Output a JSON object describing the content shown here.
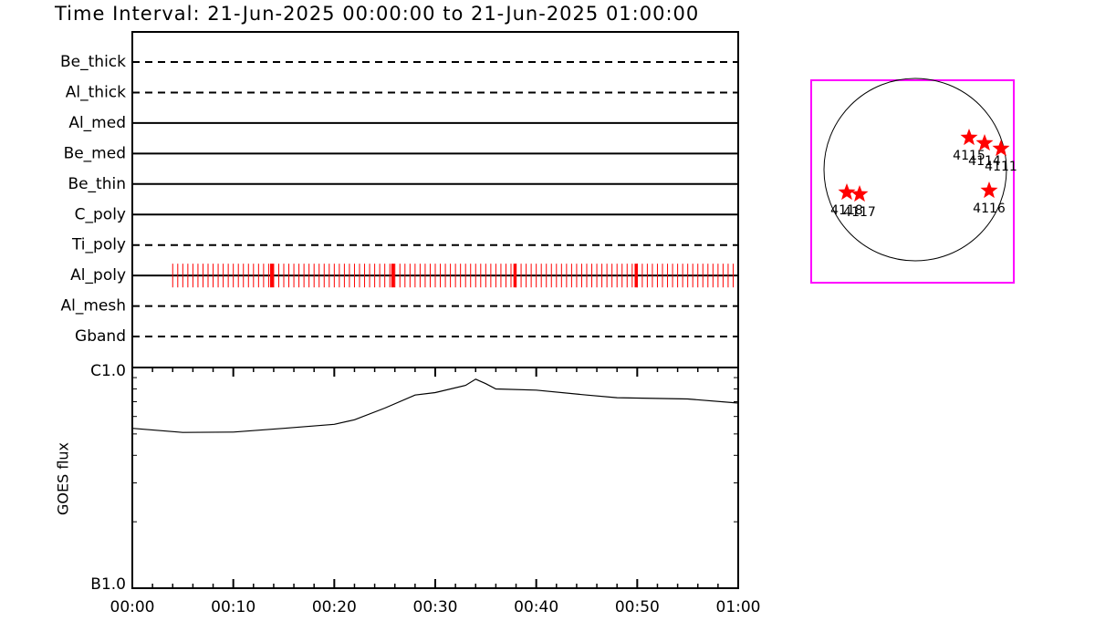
{
  "chart_data": [
    {
      "type": "timeline",
      "title": "Time Interval: 21-Jun-2025 00:00:00 to 21-Jun-2025 01:00:00",
      "categories": [
        "Be_thick",
        "Al_thick",
        "Al_med",
        "Be_med",
        "Be_thin",
        "C_poly",
        "Ti_poly",
        "Al_poly",
        "Al_mesh",
        "Gband"
      ],
      "line_styles": [
        "dashed",
        "dashed",
        "solid",
        "solid",
        "solid",
        "solid",
        "dashed",
        "solid",
        "dashed",
        "dashed"
      ],
      "xlim": [
        0,
        60
      ],
      "observations": [
        {
          "category": "Al_poly",
          "style": "thin",
          "color": "#ff0000",
          "times": [
            4,
            4.5,
            5,
            5.5,
            6,
            6.5,
            7,
            7.5,
            8,
            8.5,
            9,
            9.5,
            10,
            10.5,
            11,
            11.5,
            12,
            12.5,
            13,
            13.5,
            14,
            14.5,
            15,
            15.5,
            16,
            16.5,
            17,
            17.5,
            18,
            18.5,
            19,
            19.5,
            20,
            20.5,
            21,
            21.5,
            22,
            22.5,
            23,
            23.5,
            24,
            24.5,
            25,
            25.5,
            26,
            26.5,
            27,
            27.5,
            28,
            28.5,
            29,
            29.5,
            30,
            30.5,
            31,
            31.5,
            32,
            32.5,
            33,
            33.5,
            34,
            34.5,
            35,
            35.5,
            36,
            36.5,
            37,
            37.5,
            38,
            38.5,
            39,
            39.5,
            40,
            40.5,
            41,
            41.5,
            42,
            42.5,
            43,
            43.5,
            44,
            44.5,
            45,
            45.5,
            46,
            46.5,
            47,
            47.5,
            48,
            48.5,
            49,
            49.5,
            50,
            50.5,
            51,
            51.5,
            52,
            52.5,
            53,
            53.5,
            54,
            54.5,
            55,
            55.5,
            56,
            56.5,
            57,
            57.5,
            58,
            58.5,
            59,
            59.5
          ]
        },
        {
          "category": "Al_poly",
          "style": "thick",
          "color": "#ff0000",
          "times": [
            13.8,
            25.8,
            37.9,
            49.9
          ]
        }
      ]
    },
    {
      "type": "line",
      "ylabel": "GOES flux",
      "x": [
        0,
        5,
        10,
        15,
        20,
        22,
        25,
        28,
        30,
        33,
        34,
        35,
        36,
        40,
        45,
        48,
        55,
        60
      ],
      "values": [
        5.3e-07,
        5.08e-07,
        5.1e-07,
        5.3e-07,
        5.53e-07,
        5.8e-07,
        6.55e-07,
        7.5e-07,
        7.7e-07,
        8.3e-07,
        8.85e-07,
        8.45e-07,
        8e-07,
        7.9e-07,
        7.5e-07,
        7.3e-07,
        7.2e-07,
        6.9e-07
      ],
      "color": "#000000",
      "xlim": [
        0,
        60
      ],
      "xticks": [
        {
          "value": 0,
          "label": "00:00"
        },
        {
          "value": 10,
          "label": "00:10"
        },
        {
          "value": 20,
          "label": "00:20"
        },
        {
          "value": 30,
          "label": "00:30"
        },
        {
          "value": 40,
          "label": "00:40"
        },
        {
          "value": 50,
          "label": "00:50"
        },
        {
          "value": 60,
          "label": "01:00"
        }
      ],
      "xminor": [
        2,
        4,
        6,
        8,
        12,
        14,
        16,
        18,
        22,
        24,
        26,
        28,
        32,
        34,
        36,
        38,
        42,
        44,
        46,
        48,
        52,
        54,
        56,
        58
      ],
      "ylog": true,
      "ylim": [
        1e-07,
        1e-06
      ],
      "yticks": [
        {
          "value": 1e-07,
          "label": "B1.0"
        },
        {
          "value": 1e-06,
          "label": "C1.0"
        }
      ],
      "yminor": [
        2e-07,
        3e-07,
        4e-07,
        5e-07,
        6e-07,
        7e-07,
        8e-07,
        9e-07
      ]
    },
    {
      "type": "disk",
      "xlim": [
        -1.14,
        1.08
      ],
      "ylim": [
        -1.24,
        0.98
      ],
      "disk_radius": 1,
      "box_color": "#ff00ff",
      "color": "#ff0000",
      "regions": [
        {
          "label": "4115",
          "x": 0.59,
          "y": 0.35
        },
        {
          "label": "4114",
          "x": 0.76,
          "y": 0.29
        },
        {
          "label": "4111",
          "x": 0.94,
          "y": 0.23
        },
        {
          "label": "4116",
          "x": 0.81,
          "y": -0.23
        },
        {
          "label": "4118",
          "x": -0.75,
          "y": -0.25
        },
        {
          "label": "4117",
          "x": -0.61,
          "y": -0.27
        }
      ]
    }
  ]
}
